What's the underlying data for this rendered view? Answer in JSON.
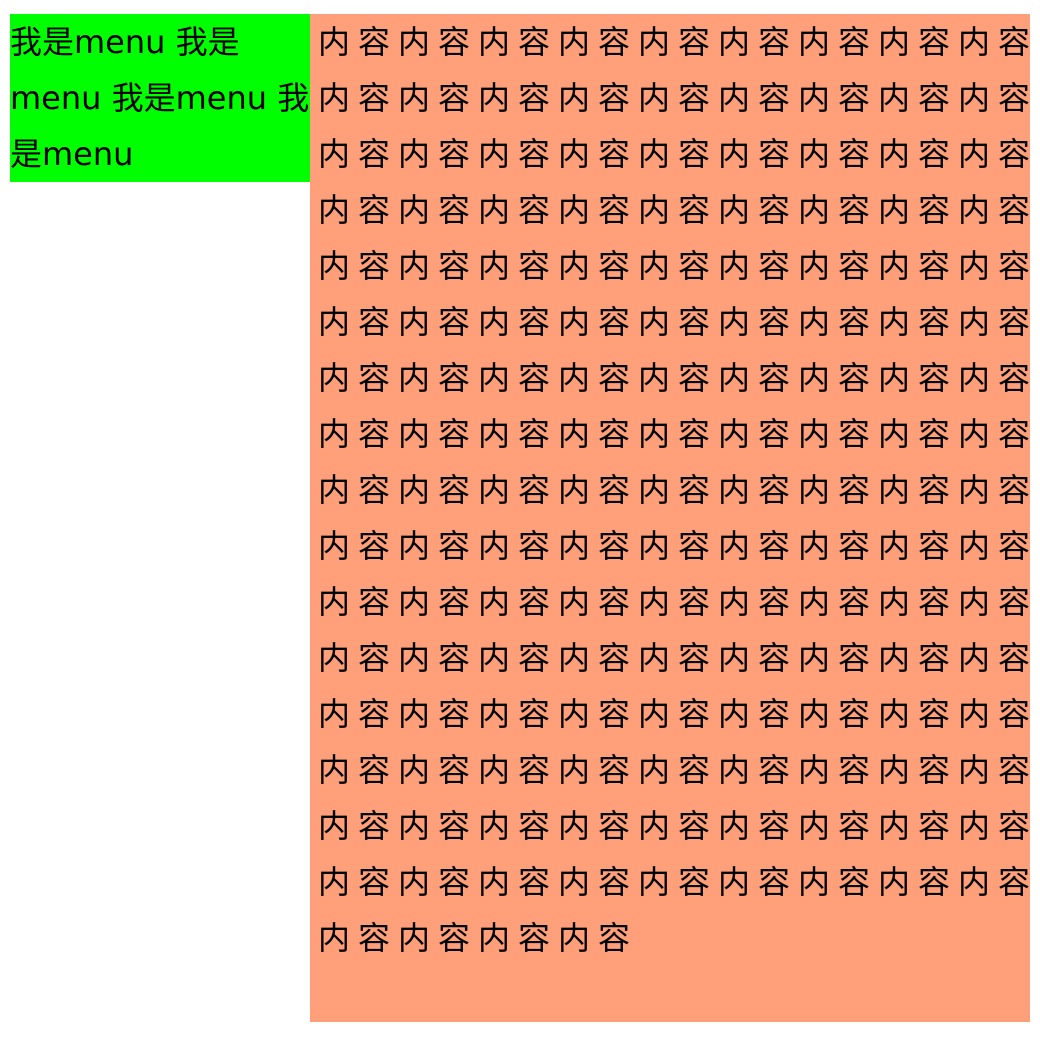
{
  "menu": {
    "text": "我是menu 我是menu 我是menu 我是menu"
  },
  "content": {
    "text": "内容内容内容内容内容内容内容内容内容内容内容内容内容内容内容内容内容内容内容内容内容内容内容内容内容内容内容内容内容内容内容内容内容内容内容内容内容内容内容内容内容内容内容内容内容内容内容内容内容内容内容内容内容内容内容内容内容内容内容内容内容内容内容内容内容内容内容内容内容内容内容内容内容内容内容内容内容内容内容内容内容内容内容内容内容内容内容内容内容内容内容内容内容内容内容内容内容内容内容内容内容内容内容内容内容内容内容内容内容内容内容内容内容内容内容内容内容内容内容内容内容内容内容内容内容内容内容内容内容内容内容内容内容内容内容内容内容内容内容内容内容内容内容内容内容内容内容内容"
  },
  "colors": {
    "menu_background": "#00ff00",
    "content_background": "#ffa07a",
    "page_background": "#ffffff",
    "text": "#000000"
  }
}
